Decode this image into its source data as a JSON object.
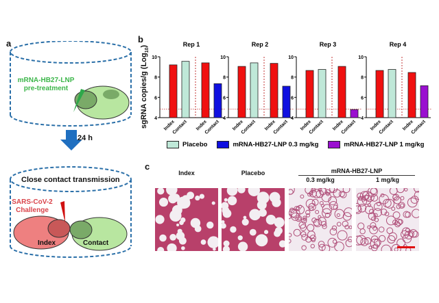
{
  "panel_a": {
    "label": "a",
    "treatment_text_1": "mRNA-HB27-LNP",
    "treatment_text_2": "pre-treatment",
    "arrow_text": "24 h",
    "cage2_title": "Close contact transmission",
    "challenge_text_1": "SARS-CoV-2",
    "challenge_text_2": "Challenge",
    "index_label": "Index",
    "contact_label": "Contact",
    "colors": {
      "cage": "#2a6fa8",
      "arrow": "#1f6fc0",
      "green_text": "#3cb64a",
      "red_text": "#d9434a"
    }
  },
  "chart_data": {
    "type": "bar",
    "panel_label": "b",
    "ylabel": "sgRNA copies/g (Log",
    "ylabel_sub": "10",
    "ylabel_close": ")",
    "ylim": [
      4,
      10
    ],
    "yticks": [
      "4",
      "6",
      "8",
      "10"
    ],
    "limit_of_detection": 4.85,
    "categories": [
      "Index",
      "Contact",
      "Index",
      "Contact"
    ],
    "panels": [
      {
        "title": "Rep 1",
        "values": [
          9.2,
          9.55,
          9.4,
          7.35
        ],
        "groups": [
          "index",
          "placebo",
          "index",
          "low"
        ]
      },
      {
        "title": "Rep 2",
        "values": [
          9.05,
          9.4,
          9.35,
          7.1
        ],
        "groups": [
          "index",
          "placebo",
          "index",
          "low"
        ]
      },
      {
        "title": "Rep 3",
        "values": [
          8.65,
          8.75,
          9.05,
          4.8
        ],
        "groups": [
          "index",
          "placebo",
          "index",
          "high"
        ]
      },
      {
        "title": "Rep 4",
        "values": [
          8.65,
          8.75,
          8.45,
          7.15
        ],
        "groups": [
          "index",
          "placebo",
          "index",
          "high"
        ]
      }
    ],
    "legend": [
      {
        "key": "placebo",
        "label": "Placebo",
        "color": "#bfe8d8"
      },
      {
        "key": "low",
        "label": "mRNA-HB27-LNP 0.3 mg/kg",
        "color": "#1010e0"
      },
      {
        "key": "high",
        "label": "mRNA-HB27-LNP 1 mg/kg",
        "color": "#9a10d0"
      }
    ],
    "colors": {
      "index": "#f01010",
      "placebo": "#bfe8d8",
      "low": "#1010e0",
      "high": "#9a10d0",
      "lod": "#c03030"
    }
  },
  "panel_c": {
    "label": "c",
    "group_header": "mRNA-HB27-LNP",
    "images": [
      {
        "title": "Index",
        "density": 0.72
      },
      {
        "title": "Placebo",
        "density": 0.72
      },
      {
        "title": "0.3 mg/kg",
        "density": 0.35
      },
      {
        "title": "1 mg/kg",
        "density": 0.3
      }
    ],
    "scale_bar_color": "#e01010"
  }
}
